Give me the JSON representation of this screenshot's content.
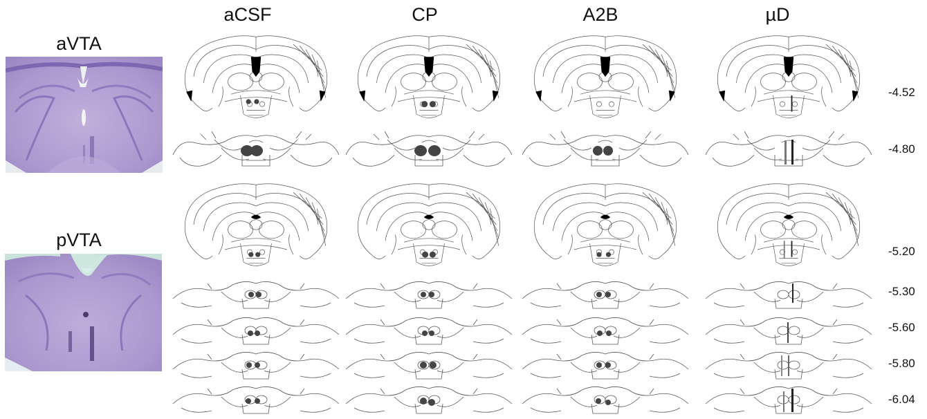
{
  "columns": [
    "aCSF",
    "CP",
    "A2B",
    "µD"
  ],
  "photos": [
    {
      "label": "aVTA",
      "tint": "#b5a3d6"
    },
    {
      "label": "pVTA",
      "tint": "#b3a4d4"
    }
  ],
  "coordinates": [
    "-4.52",
    "-4.80",
    "-5.20",
    "-5.30",
    "-5.60",
    "-5.80",
    "-6.04"
  ],
  "colors": {
    "outline": "#555555",
    "ventricle": "#000000",
    "placement_dot": "#444444",
    "background": "#ffffff"
  }
}
